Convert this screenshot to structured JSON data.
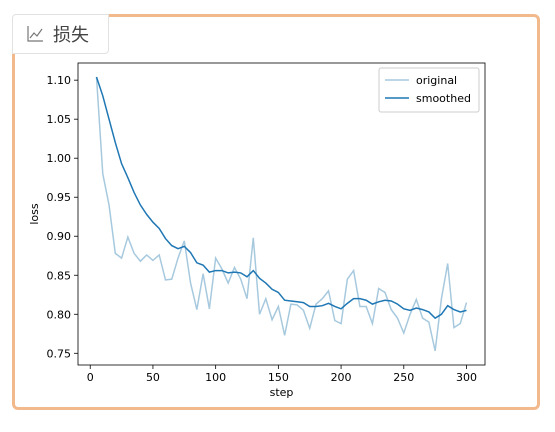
{
  "panel_title": "损失",
  "chart_data": {
    "type": "line",
    "xlabel": "step",
    "ylabel": "loss",
    "x": [
      5,
      10,
      15,
      20,
      25,
      30,
      35,
      40,
      45,
      50,
      55,
      60,
      65,
      70,
      75,
      80,
      85,
      90,
      95,
      100,
      105,
      110,
      115,
      120,
      125,
      130,
      135,
      140,
      145,
      150,
      155,
      160,
      165,
      170,
      175,
      180,
      185,
      190,
      195,
      200,
      205,
      210,
      215,
      220,
      225,
      230,
      235,
      240,
      245,
      250,
      255,
      260,
      265,
      270,
      275,
      280,
      285,
      290,
      295,
      300
    ],
    "series": [
      {
        "name": "original",
        "color": "#a7c9de",
        "values": [
          1.104,
          0.98,
          0.94,
          0.878,
          0.872,
          0.899,
          0.878,
          0.868,
          0.876,
          0.869,
          0.876,
          0.844,
          0.845,
          0.872,
          0.894,
          0.84,
          0.806,
          0.852,
          0.807,
          0.872,
          0.858,
          0.84,
          0.86,
          0.845,
          0.82,
          0.898,
          0.8,
          0.82,
          0.793,
          0.81,
          0.773,
          0.813,
          0.812,
          0.805,
          0.782,
          0.813,
          0.82,
          0.83,
          0.792,
          0.788,
          0.845,
          0.856,
          0.81,
          0.81,
          0.788,
          0.833,
          0.828,
          0.806,
          0.795,
          0.776,
          0.8,
          0.819,
          0.795,
          0.79,
          0.753,
          0.82,
          0.865,
          0.783,
          0.788,
          0.815
        ]
      },
      {
        "name": "smoothed",
        "color": "#1f77b4",
        "values": [
          1.104,
          1.08,
          1.05,
          1.02,
          0.993,
          0.975,
          0.956,
          0.94,
          0.928,
          0.918,
          0.91,
          0.897,
          0.888,
          0.884,
          0.887,
          0.879,
          0.866,
          0.863,
          0.854,
          0.856,
          0.856,
          0.853,
          0.854,
          0.853,
          0.848,
          0.856,
          0.846,
          0.84,
          0.832,
          0.828,
          0.818,
          0.817,
          0.816,
          0.815,
          0.81,
          0.81,
          0.811,
          0.814,
          0.81,
          0.807,
          0.814,
          0.82,
          0.82,
          0.818,
          0.813,
          0.816,
          0.818,
          0.817,
          0.813,
          0.807,
          0.805,
          0.808,
          0.806,
          0.803,
          0.795,
          0.8,
          0.811,
          0.806,
          0.803,
          0.805
        ]
      }
    ],
    "xlim": [
      -9.75,
      314.75
    ],
    "ylim": [
      0.735,
      1.122
    ],
    "xticks": [
      0,
      50,
      100,
      150,
      200,
      250,
      300
    ],
    "yticks": [
      0.75,
      {
        "value": 0.8,
        "label": "0.80"
      },
      0.85,
      {
        "value": 0.9,
        "label": "0.90"
      },
      0.95,
      {
        "value": 1,
        "label": "1.00"
      },
      1.05,
      {
        "value": 1.1,
        "label": "1.10"
      }
    ],
    "legend": "upper right"
  }
}
